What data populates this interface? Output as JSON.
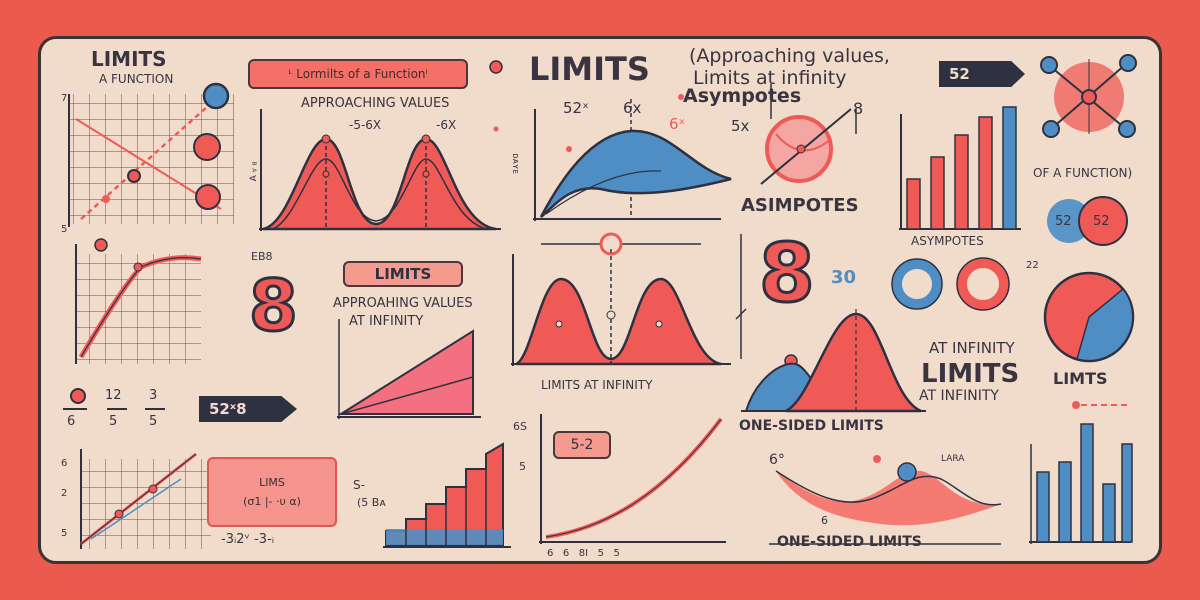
{
  "labels": {
    "limits_top_left": "LIMITS",
    "a_function": "A FUNCTION",
    "pill_top": "ᴸ Lormilts of a Functionᴵ",
    "approaching_values": "APPROACHING VALUES",
    "label_5_6x": "-5-6X",
    "label_6x_small": "-6X",
    "title_limits": "LIMITS",
    "approaching_values_paren": "(Approaching values,",
    "limits_at_infinity_top": "Limits at infinity",
    "asympotes_top": "Asympotes",
    "tag_52": "52",
    "label_52x": "52ˣ",
    "label_6x": "6x",
    "label_6x_red": "6ˣ",
    "label_5x": "5x",
    "label_8": "8",
    "asimpotes": "ASIMPOTES",
    "asympotes_mid": "ASYMPOTES",
    "of_a_function": "OF A FUNCTION)",
    "bubble_52_left": "52",
    "bubble_52_right": "52",
    "eb8": "EB8",
    "limits_pill": "LIMITS",
    "approaching_values_mid": "APPROAHING VALUES",
    "at_infinity_mid": "AT INFINITY",
    "limits_at_infinity_mid": "LIMITS AT INFINITY",
    "num_30": "30",
    "num_22": "22",
    "at_infinity_right": "AT INFINITY",
    "limits_right": "LIMITS",
    "at_infinity_right2": "AT INFINITY",
    "limts": "LIMTS",
    "one_sided_limits": "ONE-SIDED LIMITS",
    "one_sided_limits_bottom": "ONE-SIDED LIMITS",
    "frac_12": "12",
    "frac_5a": "5",
    "frac_3": "3",
    "frac_5b": "5",
    "frac_6": "6",
    "tag_52_8": "52ˣ8",
    "lims": "LIMS",
    "lims_expr": "(σ1 |- ·υ α)",
    "lims_bottom": "-3ᵢ2ᵛ -3-ᵢ",
    "s_label": "S-",
    "five_b": "(5 Bᴀ",
    "label_6s": "6S",
    "label_5": "5",
    "label_5_2": "5-2",
    "axis_bottom": "6   6   8I   5   5",
    "label_6_deg": "6°",
    "label_6_small": "6",
    "laaa": "LARA",
    "big_eight_left": "8",
    "big_eight_mid": "8",
    "side_2": "2",
    "side_5": "5",
    "side_6": "6",
    "side_5b": "5",
    "side_ebb": "ƎB8",
    "vertical_label": "ᴅᴀʏᴇ"
  },
  "colors": {
    "board": "#f1dccb",
    "background": "#ea5a4d",
    "red": "#ef5a57",
    "blue": "#4f8ec4",
    "ink": "#2f3140"
  }
}
